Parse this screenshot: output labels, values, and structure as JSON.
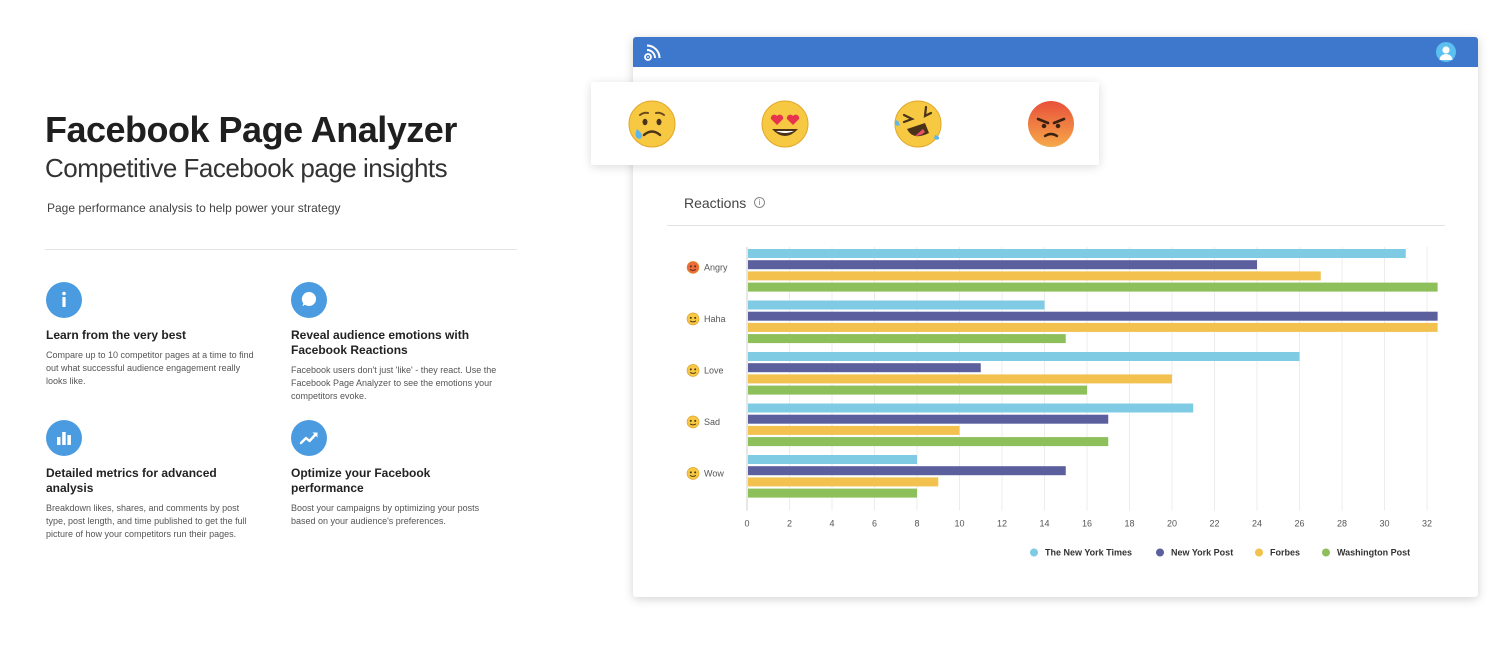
{
  "hero": {
    "title": "Facebook Page Analyzer",
    "subtitle": "Competitive Facebook page insights",
    "description": "Page performance analysis to help power your strategy"
  },
  "features": [
    {
      "icon": "info-icon",
      "title": "Learn from the very best",
      "description": "Compare up to 10 competitor pages at a time to find out what successful audience engagement really looks like."
    },
    {
      "icon": "speech-bubble-icon",
      "title": "Reveal audience emotions with Facebook Reactions",
      "description": "Facebook users don't just 'like' - they react. Use the Facebook Page Analyzer to see the emotions your competitors evoke."
    },
    {
      "icon": "bar-chart-icon",
      "title": "Detailed metrics for advanced analysis",
      "description": "Breakdown likes, shares, and comments by post type, post length, and time published to get the full picture of how your competitors run their pages."
    },
    {
      "icon": "trend-up-icon",
      "title": "Optimize your Facebook performance",
      "description": "Boost your campaigns by optimizing your posts based on your audience's preferences."
    }
  ],
  "app": {
    "accent_color": "#3d78cc",
    "panel_title": "Reactions",
    "reaction_emojis": [
      "sad-emoji",
      "love-emoji",
      "haha-emoji",
      "angry-emoji"
    ]
  },
  "chart_data": {
    "type": "bar",
    "orientation": "horizontal",
    "title": "",
    "categories": [
      "Angry",
      "Haha",
      "Love",
      "Sad",
      "Wow"
    ],
    "xlim": [
      0,
      32
    ],
    "xticks": [
      0,
      2,
      4,
      6,
      8,
      10,
      12,
      14,
      16,
      18,
      20,
      22,
      24,
      26,
      28,
      30,
      32
    ],
    "grid": true,
    "legend_position": "bottom-right",
    "series": [
      {
        "name": "The New York Times",
        "color": "#7ecbe3",
        "values": [
          31,
          14,
          26,
          21,
          8
        ]
      },
      {
        "name": "New York Post",
        "color": "#5b5f9e",
        "values": [
          24,
          32.5,
          11,
          17,
          15
        ]
      },
      {
        "name": "Forbes",
        "color": "#f2c14e",
        "values": [
          27,
          32.5,
          20,
          10,
          9
        ]
      },
      {
        "name": "Washington Post",
        "color": "#8dbf5b",
        "values": [
          32.5,
          15,
          16,
          17,
          8
        ]
      }
    ]
  }
}
